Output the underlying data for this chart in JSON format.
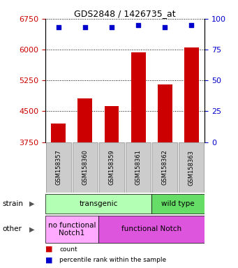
{
  "title": "GDS2848 / 1426735_at",
  "samples": [
    "GSM158357",
    "GSM158360",
    "GSM158359",
    "GSM158361",
    "GSM158362",
    "GSM158363"
  ],
  "counts": [
    4200,
    4820,
    4620,
    5930,
    5150,
    6050
  ],
  "percentiles": [
    93,
    93,
    93,
    95,
    93,
    95
  ],
  "ylim_left": [
    3750,
    6750
  ],
  "ylim_right": [
    0,
    100
  ],
  "yticks_left": [
    3750,
    4500,
    5250,
    6000,
    6750
  ],
  "yticks_right": [
    0,
    25,
    50,
    75,
    100
  ],
  "bar_color": "#cc0000",
  "dot_color": "#0000cc",
  "strain_labels": [
    {
      "text": "transgenic",
      "start": 0,
      "end": 4,
      "color": "#b3ffb3"
    },
    {
      "text": "wild type",
      "start": 4,
      "end": 6,
      "color": "#66dd66"
    }
  ],
  "other_labels": [
    {
      "text": "no functional\nNotch1",
      "start": 0,
      "end": 2,
      "color": "#ffaaff"
    },
    {
      "text": "functional Notch",
      "start": 2,
      "end": 6,
      "color": "#dd55dd"
    }
  ],
  "left_axis_color": "#cc0000",
  "right_axis_color": "#0000cc",
  "tick_label_box_color": "#cccccc",
  "tick_label_box_edge": "#888888"
}
